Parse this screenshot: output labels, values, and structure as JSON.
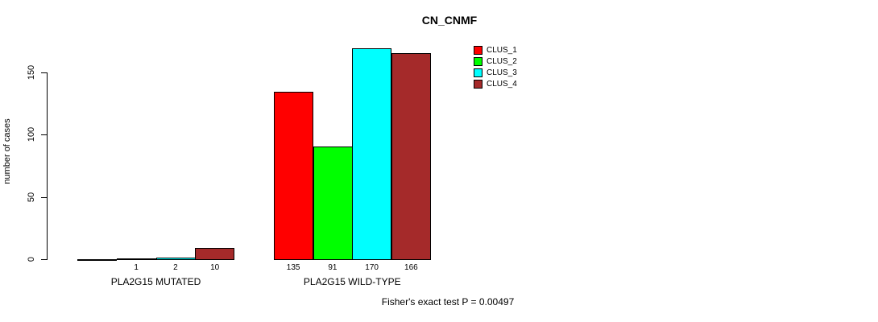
{
  "page": {
    "background": "#FFFFFF",
    "axis_color": "#000000",
    "text_color": "#000000"
  },
  "chart_data": {
    "type": "bar",
    "title": "CN_CNMF",
    "ylabel": "number of cases",
    "xlabel": "",
    "categories": [
      "PLA2G15 MUTATED",
      "PLA2G15 WILD-TYPE"
    ],
    "series": [
      {
        "name": "CLUS_1",
        "color": "#FF0000",
        "values": [
          0,
          135
        ]
      },
      {
        "name": "CLUS_2",
        "color": "#00FF00",
        "values": [
          1,
          91
        ]
      },
      {
        "name": "CLUS_3",
        "color": "#00FFFF",
        "values": [
          2,
          170
        ]
      },
      {
        "name": "CLUS_4",
        "color": "#A52A2A",
        "values": [
          10,
          166
        ]
      }
    ],
    "bar_value_labels": [
      [
        "",
        "1",
        "2",
        "10"
      ],
      [
        "135",
        "91",
        "170",
        "166"
      ]
    ],
    "yticks": [
      0,
      50,
      100,
      150
    ],
    "ylim": [
      0,
      170
    ],
    "grid": false,
    "legend_position": "top-right",
    "footnote": "Fisher's exact test P = 0.00497"
  }
}
